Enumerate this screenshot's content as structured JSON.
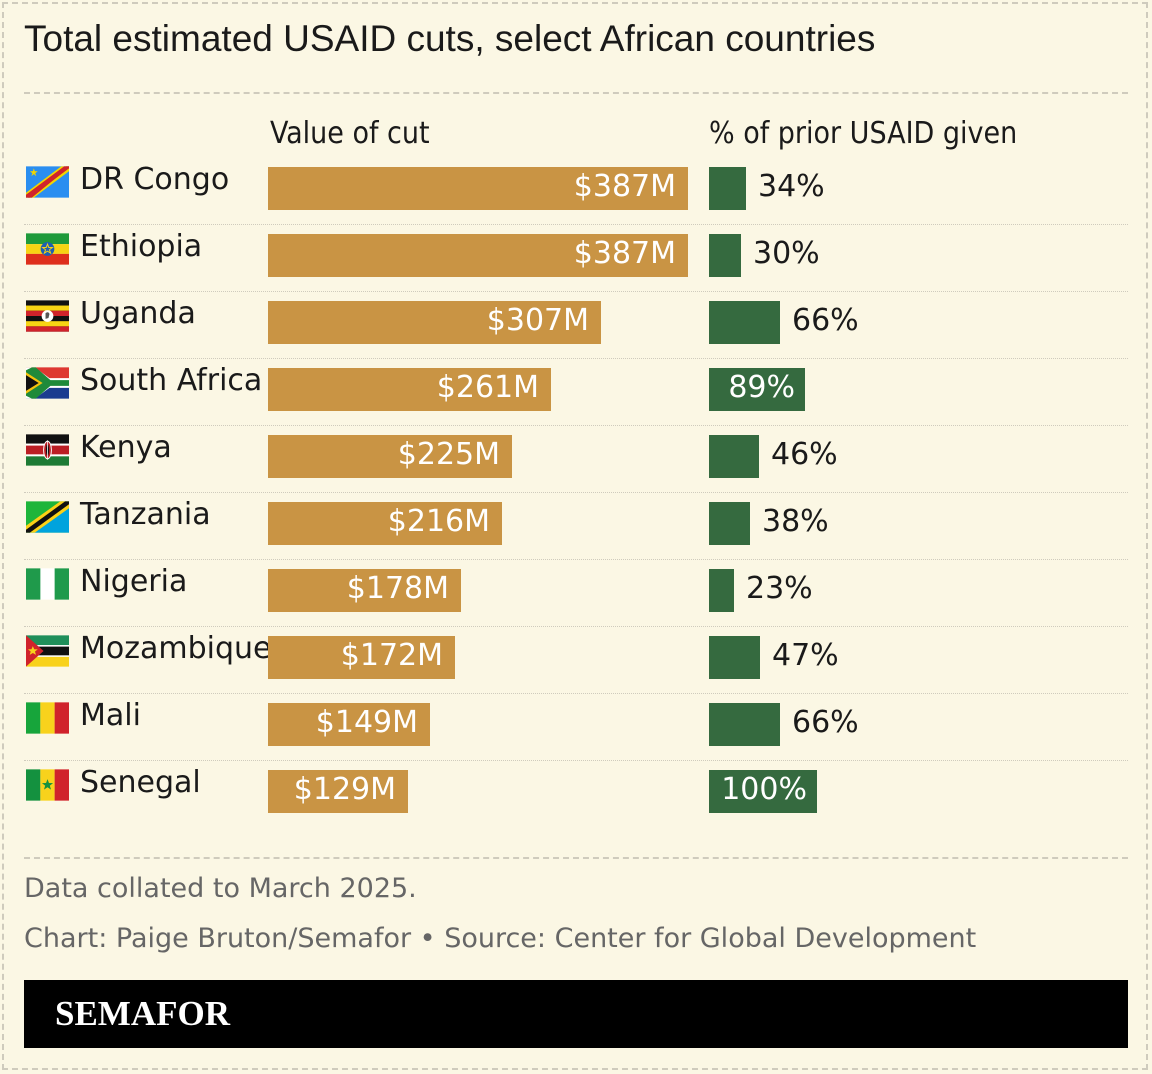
{
  "title": "Total estimated USAID cuts, select African countries",
  "columns": {
    "value": "Value of cut",
    "pct": "% of prior USAID given"
  },
  "chart_data": {
    "type": "bar",
    "title": "Total estimated USAID cuts, select African countries",
    "categories": [
      "DR Congo",
      "Ethiopia",
      "Uganda",
      "South Africa",
      "Kenya",
      "Tanzania",
      "Nigeria",
      "Mozambique",
      "Mali",
      "Senegal"
    ],
    "series": [
      {
        "name": "Value of cut",
        "unit": "$M",
        "values": [
          387,
          387,
          307,
          261,
          225,
          216,
          178,
          172,
          149,
          129
        ],
        "labels": [
          "$387M",
          "$387M",
          "$307M",
          "$261M",
          "$225M",
          "$216M",
          "$178M",
          "$172M",
          "$149M",
          "$129M"
        ]
      },
      {
        "name": "% of prior USAID given",
        "unit": "%",
        "values": [
          34,
          30,
          66,
          89,
          46,
          38,
          23,
          47,
          66,
          100
        ],
        "labels": [
          "34%",
          "30%",
          "66%",
          "89%",
          "46%",
          "38%",
          "23%",
          "47%",
          "66%",
          "100%"
        ]
      }
    ],
    "xlim_value": [
      0,
      387
    ],
    "xlim_pct": [
      0,
      100
    ]
  },
  "flags": [
    "drc-flag",
    "ethiopia-flag",
    "uganda-flag",
    "south-africa-flag",
    "kenya-flag",
    "tanzania-flag",
    "nigeria-flag",
    "mozambique-flag",
    "mali-flag",
    "senegal-flag"
  ],
  "colors": {
    "value_bar": "#c99444",
    "pct_bar": "#356a3f",
    "background": "#fbf7e4"
  },
  "footer": {
    "note": "Data collated to March 2025.",
    "credit": "Chart: Paige Bruton/Semafor • Source: Center for Global Development",
    "logo": "SEMAFOR"
  }
}
